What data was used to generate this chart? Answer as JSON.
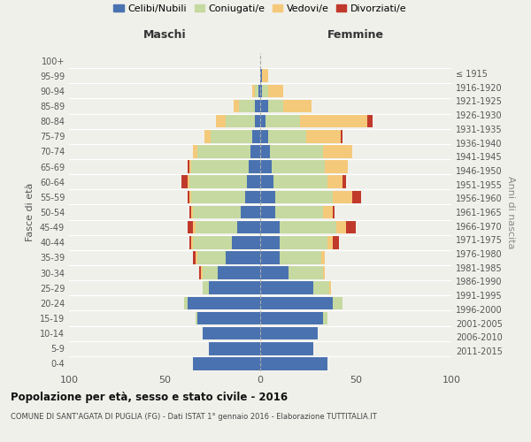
{
  "age_groups": [
    "0-4",
    "5-9",
    "10-14",
    "15-19",
    "20-24",
    "25-29",
    "30-34",
    "35-39",
    "40-44",
    "45-49",
    "50-54",
    "55-59",
    "60-64",
    "65-69",
    "70-74",
    "75-79",
    "80-84",
    "85-89",
    "90-94",
    "95-99",
    "100+"
  ],
  "birth_years": [
    "2011-2015",
    "2006-2010",
    "2001-2005",
    "1996-2000",
    "1991-1995",
    "1986-1990",
    "1981-1985",
    "1976-1980",
    "1971-1975",
    "1966-1970",
    "1961-1965",
    "1956-1960",
    "1951-1955",
    "1946-1950",
    "1941-1945",
    "1936-1940",
    "1931-1935",
    "1926-1930",
    "1921-1925",
    "1916-1920",
    "≤ 1915"
  ],
  "colors": {
    "celibi": "#4a72b0",
    "coniugati": "#c5d9a0",
    "vedovi": "#f5c97a",
    "divorziati": "#c0392b"
  },
  "maschi": {
    "celibi": [
      35,
      27,
      30,
      33,
      38,
      27,
      22,
      18,
      15,
      12,
      10,
      8,
      7,
      6,
      5,
      4,
      3,
      3,
      1,
      0,
      0
    ],
    "coniugati": [
      0,
      0,
      0,
      1,
      2,
      3,
      8,
      15,
      20,
      22,
      25,
      28,
      30,
      30,
      28,
      22,
      15,
      8,
      2,
      0,
      0
    ],
    "vedovi": [
      0,
      0,
      0,
      0,
      0,
      0,
      1,
      1,
      1,
      1,
      1,
      1,
      1,
      1,
      2,
      3,
      5,
      3,
      1,
      0,
      0
    ],
    "divorziati": [
      0,
      0,
      0,
      0,
      0,
      0,
      1,
      1,
      1,
      3,
      1,
      1,
      3,
      1,
      0,
      0,
      0,
      0,
      0,
      0,
      0
    ]
  },
  "femmine": {
    "celibi": [
      35,
      28,
      30,
      33,
      38,
      28,
      15,
      10,
      10,
      10,
      8,
      8,
      7,
      6,
      5,
      4,
      3,
      4,
      1,
      1,
      0
    ],
    "coniugati": [
      0,
      0,
      0,
      2,
      5,
      8,
      18,
      22,
      25,
      30,
      25,
      30,
      28,
      28,
      28,
      20,
      18,
      8,
      3,
      0,
      0
    ],
    "vedovi": [
      0,
      0,
      0,
      0,
      0,
      1,
      1,
      2,
      3,
      5,
      5,
      10,
      8,
      12,
      15,
      18,
      35,
      15,
      8,
      3,
      0
    ],
    "divorziati": [
      0,
      0,
      0,
      0,
      0,
      0,
      0,
      0,
      3,
      5,
      1,
      5,
      2,
      0,
      0,
      1,
      3,
      0,
      0,
      0,
      0
    ]
  },
  "xlim": [
    -100,
    100
  ],
  "xticks": [
    -100,
    -50,
    0,
    50,
    100
  ],
  "xticklabels": [
    "100",
    "50",
    "0",
    "50",
    "100"
  ],
  "title1": "Popolazione per età, sesso e stato civile - 2016",
  "title2": "COMUNE DI SANT'AGATA DI PUGLIA (FG) - Dati ISTAT 1° gennaio 2016 - Elaborazione TUTTITALIA.IT",
  "ylabel_left": "Fasce di età",
  "ylabel_right": "Anni di nascita",
  "maschi_label": "Maschi",
  "femmine_label": "Femmine",
  "bg_color": "#f0f0eb",
  "bar_height": 0.85,
  "legend_labels": [
    "Celibi/Nubili",
    "Coniugati/e",
    "Vedovi/e",
    "Divorziati/e"
  ]
}
